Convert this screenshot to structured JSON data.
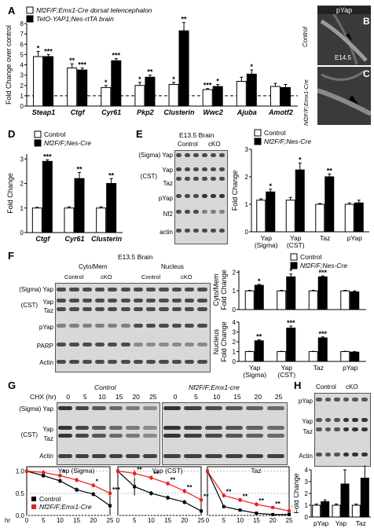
{
  "panelA": {
    "letter": "A",
    "legend": [
      "Nf2F/F;Emx1-Cre dorsal telencephalon",
      "TetO-YAP1;Nes-rtTA brain"
    ],
    "ylabel": "Fold Change over control"
  },
  "panelB": {
    "letter": "B",
    "title": "pYap",
    "label_control": "Control",
    "label_age": "E14.5"
  },
  "panelC": {
    "letter": "C",
    "label": "Nf2F/F;Emx1-Cre"
  },
  "panelD": {
    "letter": "D",
    "legend": [
      "Control",
      "Nf2F/F;Nes-Cre"
    ],
    "ylabel": "Fold Change"
  },
  "panelE": {
    "letter": "E",
    "blot_title": "E13.5 Brain",
    "cols": [
      "Control",
      "cKO"
    ],
    "rows": [
      "(Sigma) Yap",
      "Yap",
      "(CST)",
      "Taz",
      "pYap",
      "Nf2",
      "actin"
    ],
    "legend": [
      "Control",
      "Nf2F/F;Nes-Cre"
    ],
    "ylabel": "Fold Change"
  },
  "panelF": {
    "letter": "F",
    "blot_title": "E13.5 Brain",
    "groups": [
      "Cyto/Mem",
      "Nucleus"
    ],
    "cols": [
      "Control",
      "cKO",
      "Control",
      "cKO"
    ],
    "rows": [
      "(Sigma) Yap",
      "(CST)",
      "Yap",
      "Taz",
      "pYap",
      "PARP",
      "Actin"
    ],
    "legend": [
      "Control",
      "Nf2F/F;Nes-Cre"
    ],
    "ylabel_top": "Cyto/Mem Fold Change",
    "ylabel_bottom": "Nucleus Fold Change"
  },
  "panelG": {
    "letter": "G",
    "chx_label": "CHX (hr)",
    "times": [
      "0",
      "5",
      "10",
      "15",
      "20",
      "25"
    ],
    "group_control": "Control",
    "group_mut": "Nf2F/F;Emx1-cre",
    "rows": [
      "(Sigma) Yap",
      "Yap",
      "(CST)",
      "Taz",
      "Actin"
    ],
    "legend": [
      "Control",
      "Nf2F/F;Emx1-Cre"
    ],
    "xunit": "hr"
  },
  "panelH": {
    "letter": "H",
    "cols": [
      "Control",
      "cKO"
    ],
    "rows": [
      "pYap",
      "Yap",
      "Taz",
      "Actin"
    ],
    "ylabel": "Fold Change"
  },
  "chart_data": [
    {
      "id": "A",
      "type": "bar",
      "categories": [
        "Steap1",
        "Ctgf",
        "Cyr61",
        "Pkp2",
        "Clusterin",
        "Wwc2",
        "Ajuba",
        "Amotf2"
      ],
      "series": [
        {
          "name": "Nf2F/F;Emx1-Cre dorsal telencephalon",
          "values": [
            4.8,
            3.7,
            1.8,
            2.0,
            2.1,
            1.6,
            2.4,
            1.9
          ],
          "err": [
            0.5,
            0.4,
            0.2,
            0.3,
            0.2,
            0.1,
            0.4,
            0.3
          ]
        },
        {
          "name": "TetO-YAP1;Nes-rtTA brain",
          "values": [
            4.8,
            3.5,
            4.4,
            2.8,
            7.3,
            1.9,
            3.1,
            1.8
          ],
          "err": [
            0.2,
            0.2,
            0.2,
            0.2,
            0.8,
            0.2,
            0.4,
            0.3
          ]
        }
      ],
      "sig": [
        [
          "*",
          "***"
        ],
        [
          "**",
          "***"
        ],
        [
          "*",
          "***"
        ],
        [
          "*",
          "**"
        ],
        [
          "*",
          "**"
        ],
        [
          "***",
          "*"
        ],
        [
          "",
          "*"
        ],
        [
          "",
          ""
        ]
      ],
      "ylabel": "Fold Change over control",
      "yticks": [
        0,
        1,
        2,
        3,
        4,
        5,
        6,
        7,
        8
      ],
      "ylim": [
        0,
        8
      ],
      "baseline": 1
    },
    {
      "id": "D",
      "type": "bar",
      "categories": [
        "Ctgf",
        "Cyr61",
        "Clusterin"
      ],
      "series": [
        {
          "name": "Control",
          "values": [
            1.0,
            1.0,
            1.0
          ],
          "err": [
            0.03,
            0.05,
            0.05
          ]
        },
        {
          "name": "Nf2F/F;Nes-Cre",
          "values": [
            2.9,
            2.2,
            2.0
          ],
          "err": [
            0.06,
            0.25,
            0.2
          ]
        }
      ],
      "sig": [
        "***",
        "**",
        "**"
      ],
      "ylabel": "Fold Change",
      "yticks": [
        0,
        1,
        2,
        3
      ],
      "ylim": [
        0,
        3.2
      ]
    },
    {
      "id": "E",
      "type": "bar",
      "categories": [
        "Yap (Sigma)",
        "Yap (CST)",
        "Taz",
        "pYap"
      ],
      "series": [
        {
          "name": "Control",
          "values": [
            1.15,
            1.15,
            1.0,
            1.0
          ],
          "err": [
            0.05,
            0.1,
            0.03,
            0.05
          ]
        },
        {
          "name": "Nf2F/F;Nes-Cre",
          "values": [
            1.45,
            2.25,
            2.0,
            1.05
          ],
          "err": [
            0.1,
            0.25,
            0.1,
            0.1
          ]
        }
      ],
      "sig": [
        "*",
        "*",
        "**",
        ""
      ],
      "ylabel": "Fold Change",
      "yticks": [
        0,
        1,
        2,
        3
      ],
      "ylim": [
        0,
        3
      ]
    },
    {
      "id": "F-top",
      "type": "bar",
      "categories": [
        "Yap (Sigma)",
        "Yap (CST)",
        "Taz",
        "pYap"
      ],
      "series": [
        {
          "name": "Control",
          "values": [
            1.0,
            1.0,
            1.0,
            1.0
          ],
          "err": [
            0.03,
            0.03,
            0.03,
            0.03
          ]
        },
        {
          "name": "Nf2F/F;Nes-Cre",
          "values": [
            1.3,
            1.75,
            1.75,
            0.95
          ],
          "err": [
            0.05,
            0.15,
            0.05,
            0.05
          ]
        }
      ],
      "sig": [
        "*",
        "*",
        "***",
        ""
      ],
      "ylabel": "Cyto/Mem Fold Change",
      "yticks": [
        0,
        1,
        2
      ],
      "ylim": [
        0,
        2.1
      ]
    },
    {
      "id": "F-bottom",
      "type": "bar",
      "categories": [
        "Yap (Sigma)",
        "Yap (CST)",
        "Taz",
        "pYap"
      ],
      "series": [
        {
          "name": "Control",
          "values": [
            1.0,
            1.0,
            1.0,
            1.0
          ],
          "err": [
            0.03,
            0.03,
            0.03,
            0.03
          ]
        },
        {
          "name": "Nf2F/F;Nes-Cre",
          "values": [
            2.1,
            3.4,
            2.4,
            0.95
          ],
          "err": [
            0.1,
            0.2,
            0.1,
            0.05
          ]
        }
      ],
      "sig": [
        "**",
        "***",
        "***",
        ""
      ],
      "ylabel": "Nucleus Fold Change",
      "yticks": [
        0,
        1,
        2,
        3,
        4
      ],
      "ylim": [
        0,
        4
      ]
    },
    {
      "id": "G",
      "type": "line",
      "x": [
        0,
        5,
        10,
        15,
        20,
        25
      ],
      "subplots": [
        {
          "title": "Yap (Sigma)",
          "series": [
            {
              "name": "Control",
              "values": [
                1.0,
                0.9,
                0.78,
                0.58,
                0.48,
                0.22
              ],
              "err": [
                0,
                0.05,
                0.05,
                0.05,
                0.05,
                0.03
              ]
            },
            {
              "name": "Nf2F/F;Emx1-Cre",
              "values": [
                1.0,
                0.97,
                0.9,
                0.8,
                0.68,
                0.5
              ],
              "err": [
                0,
                0.05,
                0.05,
                0.05,
                0.05,
                0.05
              ]
            }
          ],
          "sig": [
            "",
            "",
            "*",
            "",
            "*",
            "***"
          ]
        },
        {
          "title": "Yap (CST)",
          "series": [
            {
              "name": "Control",
              "values": [
                1.0,
                0.65,
                0.5,
                0.4,
                0.3,
                0.1
              ],
              "err": [
                0,
                0.2,
                0.05,
                0.05,
                0.05,
                0.03
              ]
            },
            {
              "name": "Nf2F/F;Emx1-Cre",
              "values": [
                1.0,
                0.95,
                0.85,
                0.72,
                0.55,
                0.35
              ],
              "err": [
                0,
                0.08,
                0.05,
                0.05,
                0.05,
                0.05
              ]
            }
          ],
          "sig": [
            "",
            "**",
            "**",
            "**",
            "**",
            "**"
          ]
        },
        {
          "title": "Taz",
          "series": [
            {
              "name": "Control",
              "values": [
                1.0,
                0.2,
                0.12,
                0.05,
                0.02,
                0.02
              ],
              "err": [
                0,
                0.03,
                0.02,
                0.02,
                0.01,
                0.01
              ]
            },
            {
              "name": "Nf2F/F;Emx1-Cre",
              "values": [
                1.0,
                0.45,
                0.35,
                0.25,
                0.18,
                0.1
              ],
              "err": [
                0,
                0.05,
                0.05,
                0.05,
                0.03,
                0.03
              ]
            }
          ],
          "sig": [
            "",
            "**",
            "**",
            "**",
            "**",
            "**"
          ]
        }
      ],
      "yticks": [
        0,
        0.5,
        1.0
      ],
      "ylim": [
        0,
        1.1
      ],
      "xlabel": "hr"
    },
    {
      "id": "H",
      "type": "bar",
      "categories": [
        "pYap",
        "Yap",
        "Taz"
      ],
      "series": [
        {
          "name": "Control",
          "values": [
            1.0,
            1.0,
            1.0
          ],
          "err": [
            0.1,
            0.1,
            0.1
          ]
        },
        {
          "name": "cKO",
          "values": [
            1.3,
            2.8,
            3.3
          ],
          "err": [
            0.15,
            1.2,
            1.2
          ]
        }
      ],
      "ylabel": "Fold Change",
      "yticks": [
        0,
        1,
        2,
        3,
        4
      ],
      "ylim": [
        0,
        4
      ]
    }
  ],
  "colors": {
    "black": "#000000",
    "white": "#ffffff",
    "red": "#e8201b"
  }
}
